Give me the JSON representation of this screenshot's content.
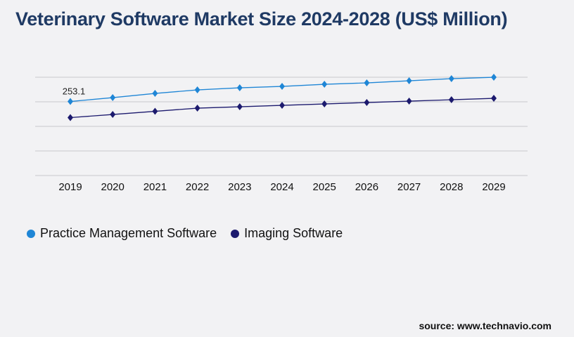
{
  "title": "Veterinary Software Market Size 2024-2028 (US$ Million)",
  "source": "source: www.technavio.com",
  "colors": {
    "practice": "#1f86d6",
    "imaging": "#1c1a6e",
    "title": "#1f3a64",
    "grid": "#c8c8cc"
  },
  "chart_data": {
    "type": "line",
    "title": "Veterinary Software Market Size 2024-2028 (US$ Million)",
    "categories": [
      "2019",
      "2020",
      "2021",
      "2022",
      "2023",
      "2024",
      "2025",
      "2026",
      "2027",
      "2028",
      "2029"
    ],
    "series": [
      {
        "name": "Practice Management Software",
        "values": [
          253.1,
          266.3,
          280.7,
          292.7,
          299.9,
          304.7,
          311.9,
          316.7,
          323.9,
          331.1,
          335.9
        ],
        "data_labels": [
          "253.1",
          "",
          "",
          "",
          "",
          "",
          "",
          "",
          "",
          "",
          ""
        ]
      },
      {
        "name": "Imaging Software",
        "values": [
          198.0,
          208.7,
          219.5,
          230.3,
          235.1,
          239.9,
          244.7,
          249.5,
          254.3,
          259.1,
          263.9
        ]
      }
    ],
    "ylim": [
      0,
      336
    ],
    "y_tick_labels_shown": false,
    "grid": true,
    "legend": "bottom-left",
    "xlabel": "",
    "ylabel": ""
  }
}
